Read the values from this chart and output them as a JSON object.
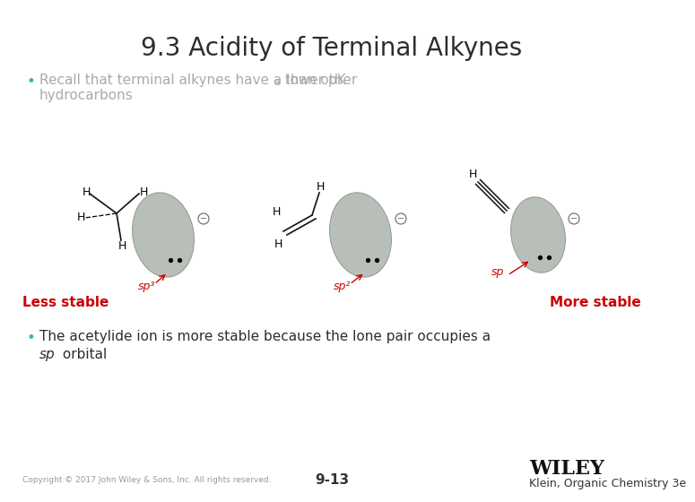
{
  "title": "9.3 Acidity of Terminal Alkynes",
  "bullet1_text": "Recall that terminal alkynes have a lower pK",
  "bullet1_sub": "a",
  "bullet1_end": " than other",
  "bullet1_line2": "hydrocarbons",
  "bullet2_line1": "The acetylide ion is more stable because the lone pair occupies a",
  "bullet2_line2_italic": "sp",
  "bullet2_line2_normal": " orbital",
  "less_stable": "Less stable",
  "more_stable": "More stable",
  "label_sp3": "sp³",
  "label_sp2": "sp²",
  "label_sp": "sp",
  "page_num": "9-13",
  "copyright": "Copyright © 2017 John Wiley & Sons, Inc. All rights reserved.",
  "publisher": "WILEY",
  "book": "Klein, Organic Chemistry 3e",
  "bg_color": "#ffffff",
  "title_color": "#2d2d2d",
  "bullet1_color": "#aaaaaa",
  "bullet2_color": "#2d2d2d",
  "bullet_dot_color": "#40b0c0",
  "red_color": "#cc0000",
  "orbital_color": "#b8bfb8",
  "orbital_edge": "#909890",
  "minus_color": "#666666",
  "bond_color": "#111111"
}
